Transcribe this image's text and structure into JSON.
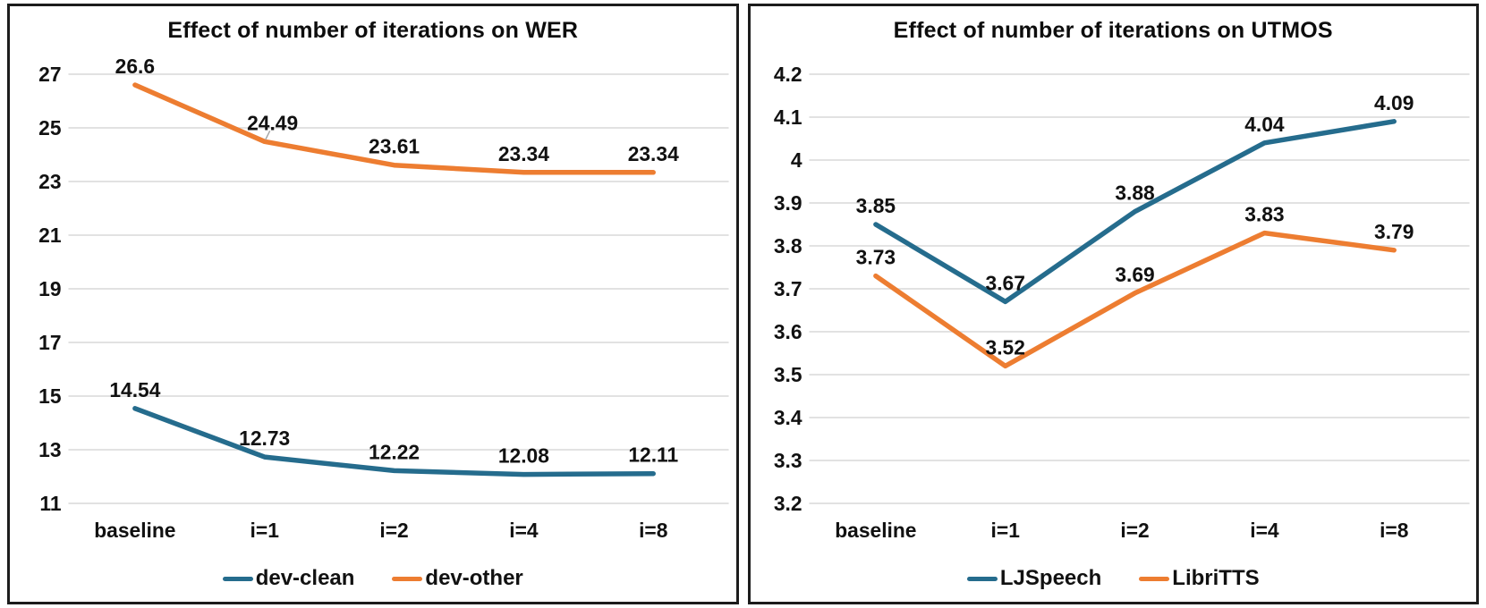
{
  "style": {
    "background": "#ffffff",
    "panel_border_color": "#1c1c1c",
    "grid_color": "#d9d9d9",
    "text_color": "#111111",
    "leader_line_color": "#a6a6a6",
    "series_blue": "#256c8d",
    "series_orange": "#ed7d31"
  },
  "chart_data": [
    {
      "type": "line",
      "title": "Effect of number of iterations on WER",
      "categories": [
        "baseline",
        "i=1",
        "i=2",
        "i=4",
        "i=8"
      ],
      "series": [
        {
          "name": "dev-clean",
          "color": "#256c8d",
          "values": [
            14.54,
            12.73,
            12.22,
            12.08,
            12.11
          ],
          "labels": [
            "14.54",
            "12.73",
            "12.22",
            "12.08",
            "12.11"
          ]
        },
        {
          "name": "dev-other",
          "color": "#ed7d31",
          "values": [
            26.6,
            24.49,
            23.61,
            23.34,
            23.34
          ],
          "labels": [
            "26.6",
            "24.49",
            "23.61",
            "23.34",
            "23.34"
          ]
        }
      ],
      "xlabel": "",
      "ylabel": "",
      "ylim": [
        11,
        27
      ],
      "yticks": [
        27,
        25,
        23,
        21,
        19,
        17,
        15,
        13,
        11
      ],
      "ytick_labels": [
        "27",
        "25",
        "23",
        "21",
        "19",
        "17",
        "15",
        "13",
        "11"
      ],
      "grid": true,
      "data_labels": true,
      "legend_position": "bottom",
      "annotations": {
        "label_leader": {
          "series_index": 1,
          "point_index": 1
        }
      }
    },
    {
      "type": "line",
      "title": "Effect of number of iterations on UTMOS",
      "categories": [
        "baseline",
        "i=1",
        "i=2",
        "i=4",
        "i=8"
      ],
      "series": [
        {
          "name": "LJSpeech",
          "color": "#256c8d",
          "values": [
            3.85,
            3.67,
            3.88,
            4.04,
            4.09
          ],
          "labels": [
            "3.85",
            "3.67",
            "3.88",
            "4.04",
            "4.09"
          ]
        },
        {
          "name": "LibriTTS",
          "color": "#ed7d31",
          "values": [
            3.73,
            3.52,
            3.69,
            3.83,
            3.79
          ],
          "labels": [
            "3.73",
            "3.52",
            "3.69",
            "3.83",
            "3.79"
          ]
        }
      ],
      "xlabel": "",
      "ylabel": "",
      "ylim": [
        3.2,
        4.2
      ],
      "yticks": [
        4.2,
        4.1,
        4,
        3.9,
        3.8,
        3.7,
        3.6,
        3.5,
        3.4,
        3.3,
        3.2
      ],
      "ytick_labels": [
        "4.2",
        "4.1",
        "4",
        "3.9",
        "3.8",
        "3.7",
        "3.6",
        "3.5",
        "3.4",
        "3.3",
        "3.2"
      ],
      "grid": true,
      "data_labels": true,
      "legend_position": "bottom",
      "annotations": {}
    }
  ]
}
